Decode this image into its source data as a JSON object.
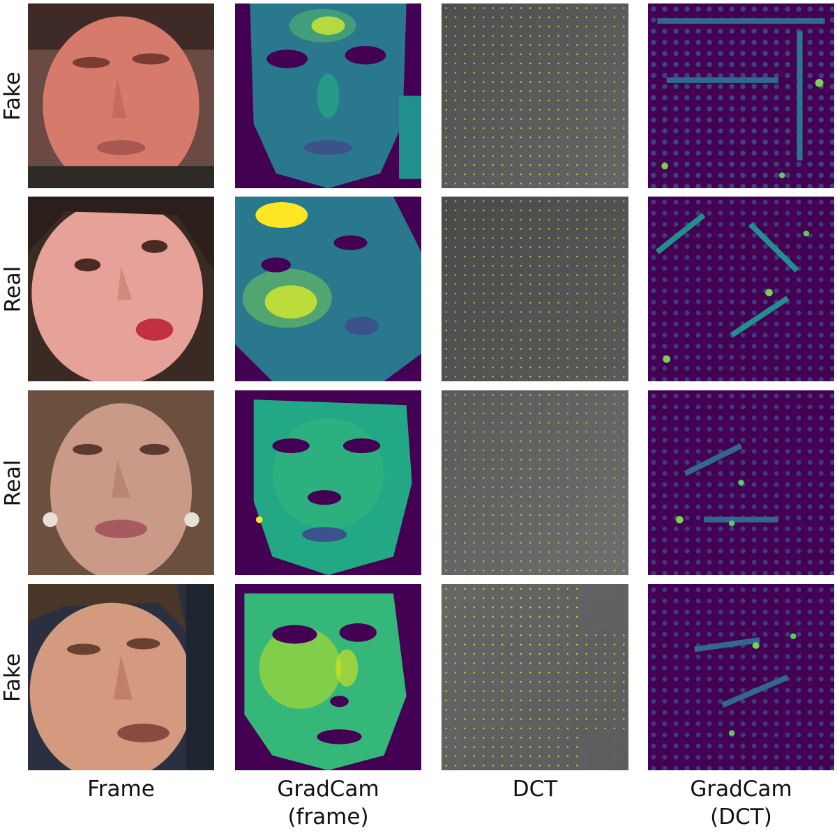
{
  "rows": [
    {
      "label": "Fake"
    },
    {
      "label": "Real"
    },
    {
      "label": "Real"
    },
    {
      "label": "Fake"
    }
  ],
  "columns": [
    {
      "line1": "Frame",
      "line2": ""
    },
    {
      "line1": "GradCam",
      "line2": "(frame)"
    },
    {
      "line1": "DCT",
      "line2": ""
    },
    {
      "line1": "GradCam",
      "line2": "(DCT)"
    }
  ],
  "colors": {
    "background": "#ffffff",
    "viridis_dark": "#440154",
    "viridis_mid": "#21908d",
    "viridis_bright": "#fde725",
    "dct_gray": "#595959"
  }
}
